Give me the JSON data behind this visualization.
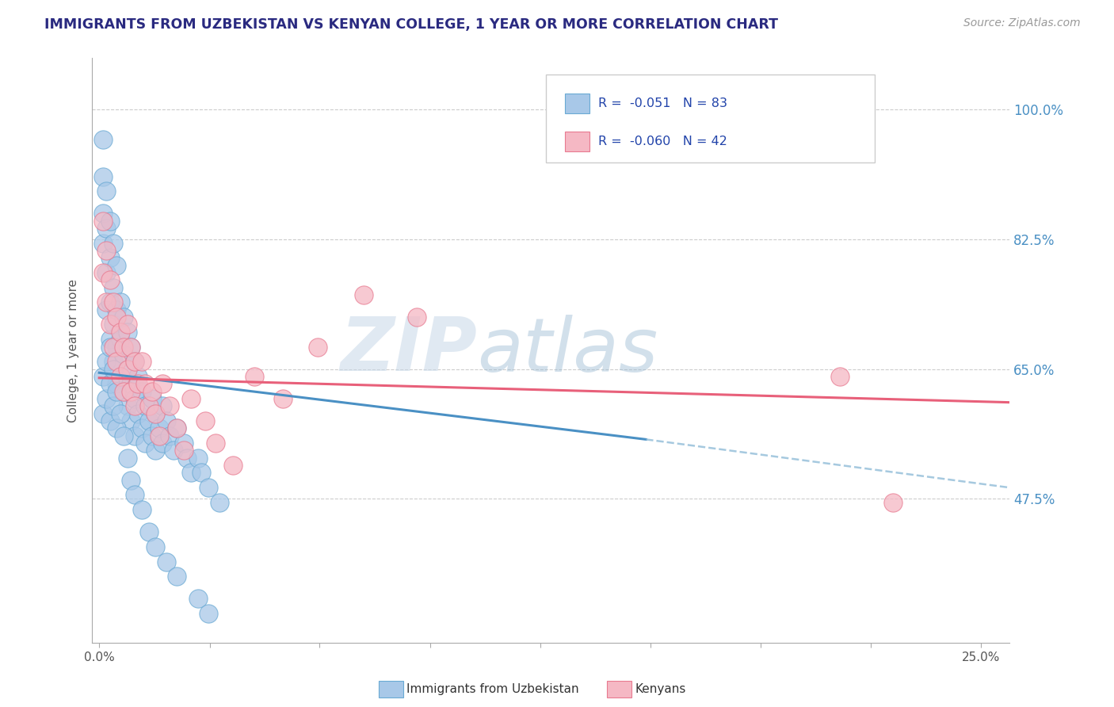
{
  "title": "IMMIGRANTS FROM UZBEKISTAN VS KENYAN COLLEGE, 1 YEAR OR MORE CORRELATION CHART",
  "source_text": "Source: ZipAtlas.com",
  "ylabel": "College, 1 year or more",
  "xlim": [
    -0.002,
    0.258
  ],
  "ylim": [
    0.28,
    1.07
  ],
  "xticks": [
    0.0,
    0.0313,
    0.0625,
    0.0938,
    0.125,
    0.1563,
    0.1875,
    0.2188,
    0.25
  ],
  "xticklabels": [
    "0.0%",
    "",
    "",
    "",
    "",
    "",
    "",
    "",
    "25.0%"
  ],
  "yticks": [
    0.475,
    0.65,
    0.825,
    1.0
  ],
  "yticklabels": [
    "47.5%",
    "65.0%",
    "82.5%",
    "100.0%"
  ],
  "color_blue": "#a8c8e8",
  "color_blue_edge": "#6aaad4",
  "color_pink": "#f5b8c4",
  "color_pink_edge": "#e87a90",
  "color_blue_line": "#4a90c4",
  "color_pink_line": "#e8607a",
  "color_blue_dash": "#90bcd8",
  "watermark_zip": "ZIP",
  "watermark_atlas": "atlas",
  "background_color": "#ffffff",
  "grid_color": "#cccccc",
  "blue_scatter_x": [
    0.001,
    0.001,
    0.001,
    0.001,
    0.002,
    0.002,
    0.002,
    0.002,
    0.003,
    0.003,
    0.003,
    0.003,
    0.004,
    0.004,
    0.004,
    0.004,
    0.005,
    0.005,
    0.005,
    0.005,
    0.006,
    0.006,
    0.006,
    0.007,
    0.007,
    0.007,
    0.008,
    0.008,
    0.008,
    0.009,
    0.009,
    0.009,
    0.01,
    0.01,
    0.01,
    0.011,
    0.011,
    0.012,
    0.012,
    0.013,
    0.013,
    0.014,
    0.015,
    0.015,
    0.016,
    0.016,
    0.017,
    0.018,
    0.018,
    0.019,
    0.02,
    0.021,
    0.022,
    0.024,
    0.025,
    0.026,
    0.028,
    0.029,
    0.031,
    0.034,
    0.001,
    0.001,
    0.002,
    0.002,
    0.003,
    0.003,
    0.003,
    0.004,
    0.004,
    0.005,
    0.005,
    0.006,
    0.007,
    0.008,
    0.009,
    0.01,
    0.012,
    0.014,
    0.016,
    0.019,
    0.022,
    0.028,
    0.031
  ],
  "blue_scatter_y": [
    0.96,
    0.91,
    0.86,
    0.82,
    0.89,
    0.84,
    0.78,
    0.73,
    0.85,
    0.8,
    0.74,
    0.69,
    0.82,
    0.76,
    0.71,
    0.66,
    0.79,
    0.73,
    0.68,
    0.63,
    0.74,
    0.69,
    0.64,
    0.72,
    0.67,
    0.62,
    0.7,
    0.65,
    0.6,
    0.68,
    0.63,
    0.58,
    0.66,
    0.61,
    0.56,
    0.64,
    0.59,
    0.62,
    0.57,
    0.6,
    0.55,
    0.58,
    0.61,
    0.56,
    0.59,
    0.54,
    0.57,
    0.6,
    0.55,
    0.58,
    0.56,
    0.54,
    0.57,
    0.55,
    0.53,
    0.51,
    0.53,
    0.51,
    0.49,
    0.47,
    0.64,
    0.59,
    0.66,
    0.61,
    0.68,
    0.63,
    0.58,
    0.65,
    0.6,
    0.62,
    0.57,
    0.59,
    0.56,
    0.53,
    0.5,
    0.48,
    0.46,
    0.43,
    0.41,
    0.39,
    0.37,
    0.34,
    0.32
  ],
  "pink_scatter_x": [
    0.001,
    0.001,
    0.002,
    0.002,
    0.003,
    0.003,
    0.004,
    0.004,
    0.005,
    0.005,
    0.006,
    0.006,
    0.007,
    0.007,
    0.008,
    0.008,
    0.009,
    0.009,
    0.01,
    0.01,
    0.011,
    0.012,
    0.013,
    0.014,
    0.015,
    0.016,
    0.017,
    0.018,
    0.02,
    0.022,
    0.024,
    0.026,
    0.03,
    0.033,
    0.038,
    0.044,
    0.052,
    0.062,
    0.075,
    0.09,
    0.21,
    0.225
  ],
  "pink_scatter_y": [
    0.85,
    0.78,
    0.81,
    0.74,
    0.77,
    0.71,
    0.74,
    0.68,
    0.72,
    0.66,
    0.7,
    0.64,
    0.68,
    0.62,
    0.71,
    0.65,
    0.68,
    0.62,
    0.66,
    0.6,
    0.63,
    0.66,
    0.63,
    0.6,
    0.62,
    0.59,
    0.56,
    0.63,
    0.6,
    0.57,
    0.54,
    0.61,
    0.58,
    0.55,
    0.52,
    0.64,
    0.61,
    0.68,
    0.75,
    0.72,
    0.64,
    0.47
  ],
  "blue_solid_line_x": [
    0.0,
    0.155
  ],
  "blue_solid_line_y": [
    0.645,
    0.555
  ],
  "blue_dash_line_x": [
    0.155,
    0.258
  ],
  "blue_dash_line_y": [
    0.555,
    0.49
  ],
  "pink_solid_line_x": [
    0.0,
    0.258
  ],
  "pink_solid_line_y": [
    0.638,
    0.605
  ],
  "legend_items": [
    {
      "label": "R =  -0.051   N = 83",
      "color": "#a8c8e8"
    },
    {
      "label": "R =  -0.060   N = 42",
      "color": "#f5b8c4"
    }
  ]
}
